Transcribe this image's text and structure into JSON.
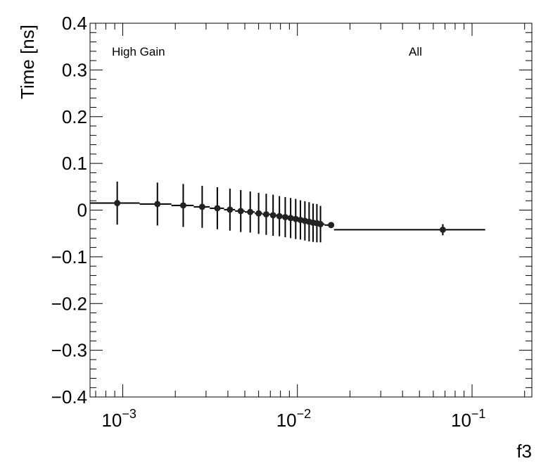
{
  "chart_data": {
    "type": "scatter",
    "xlabel": "f3",
    "ylabel": "Time [ns]",
    "x_scale": "log",
    "xlim": [
      0.00065,
      0.22
    ],
    "ylim": [
      -0.4,
      0.4
    ],
    "grid": false,
    "annotations": [
      {
        "text": "High Gain",
        "position": "top-left"
      },
      {
        "text": "All",
        "position": "top-right"
      }
    ],
    "y_ticks": [
      {
        "value": 0.4,
        "label": "0.4"
      },
      {
        "value": 0.3,
        "label": "0.3"
      },
      {
        "value": 0.2,
        "label": "0.2"
      },
      {
        "value": 0.1,
        "label": "0.1"
      },
      {
        "value": 0,
        "label": "0"
      },
      {
        "value": -0.1,
        "label": "−0.1"
      },
      {
        "value": -0.2,
        "label": "−0.2"
      },
      {
        "value": -0.3,
        "label": "−0.3"
      },
      {
        "value": -0.4,
        "label": "−0.4"
      }
    ],
    "x_ticks": [
      {
        "value": 0.001,
        "base": "10",
        "exp": "−3"
      },
      {
        "value": 0.01,
        "base": "10",
        "exp": "−2"
      },
      {
        "value": 0.1,
        "base": "10",
        "exp": "−1"
      }
    ],
    "points": [
      {
        "x": 0.00093,
        "y": 0.015,
        "yerr": 0.046,
        "xlo": 0.00065,
        "xhi": 0.00125
      },
      {
        "x": 0.00158,
        "y": 0.013,
        "yerr": 0.046,
        "xlo": 0.00125,
        "xhi": 0.0019
      },
      {
        "x": 0.00222,
        "y": 0.01,
        "yerr": 0.046,
        "xlo": 0.0019,
        "xhi": 0.00255
      },
      {
        "x": 0.00285,
        "y": 0.007,
        "yerr": 0.045,
        "xlo": 0.00255,
        "xhi": 0.00315
      },
      {
        "x": 0.00348,
        "y": 0.004,
        "yerr": 0.045,
        "xlo": 0.00315,
        "xhi": 0.0038
      },
      {
        "x": 0.00411,
        "y": 0.001,
        "yerr": 0.045,
        "xlo": 0.0038,
        "xhi": 0.0044
      },
      {
        "x": 0.00474,
        "y": -0.002,
        "yerr": 0.045,
        "xlo": 0.0044,
        "xhi": 0.005
      },
      {
        "x": 0.00537,
        "y": -0.004,
        "yerr": 0.044,
        "xlo": 0.005,
        "xhi": 0.0057
      },
      {
        "x": 0.006,
        "y": -0.007,
        "yerr": 0.044,
        "xlo": 0.0057,
        "xhi": 0.0063
      },
      {
        "x": 0.00663,
        "y": -0.009,
        "yerr": 0.044,
        "xlo": 0.0063,
        "xhi": 0.007
      },
      {
        "x": 0.00726,
        "y": -0.011,
        "yerr": 0.044,
        "xlo": 0.007,
        "xhi": 0.0076
      },
      {
        "x": 0.00789,
        "y": -0.013,
        "yerr": 0.043,
        "xlo": 0.0076,
        "xhi": 0.0082
      },
      {
        "x": 0.00852,
        "y": -0.015,
        "yerr": 0.043,
        "xlo": 0.0082,
        "xhi": 0.0088
      },
      {
        "x": 0.00915,
        "y": -0.017,
        "yerr": 0.043,
        "xlo": 0.0088,
        "xhi": 0.0095
      },
      {
        "x": 0.00978,
        "y": -0.019,
        "yerr": 0.043,
        "xlo": 0.0095,
        "xhi": 0.0101
      },
      {
        "x": 0.01041,
        "y": -0.021,
        "yerr": 0.042,
        "xlo": 0.0101,
        "xhi": 0.0107
      },
      {
        "x": 0.01104,
        "y": -0.023,
        "yerr": 0.042,
        "xlo": 0.0107,
        "xhi": 0.0114
      },
      {
        "x": 0.01167,
        "y": -0.025,
        "yerr": 0.042,
        "xlo": 0.0114,
        "xhi": 0.012
      },
      {
        "x": 0.0123,
        "y": -0.027,
        "yerr": 0.041,
        "xlo": 0.012,
        "xhi": 0.0126
      },
      {
        "x": 0.01293,
        "y": -0.028,
        "yerr": 0.041,
        "xlo": 0.0126,
        "xhi": 0.0133
      },
      {
        "x": 0.01356,
        "y": -0.03,
        "yerr": 0.039,
        "xlo": 0.0133,
        "xhi": 0.0143
      },
      {
        "x": 0.0156,
        "y": -0.032,
        "yerr": 0.004,
        "xlo": 0.0143,
        "xhi": 0.0162
      },
      {
        "x": 0.068,
        "y": -0.042,
        "yerr": 0.012,
        "xlo": 0.0162,
        "xhi": 0.119
      }
    ]
  }
}
